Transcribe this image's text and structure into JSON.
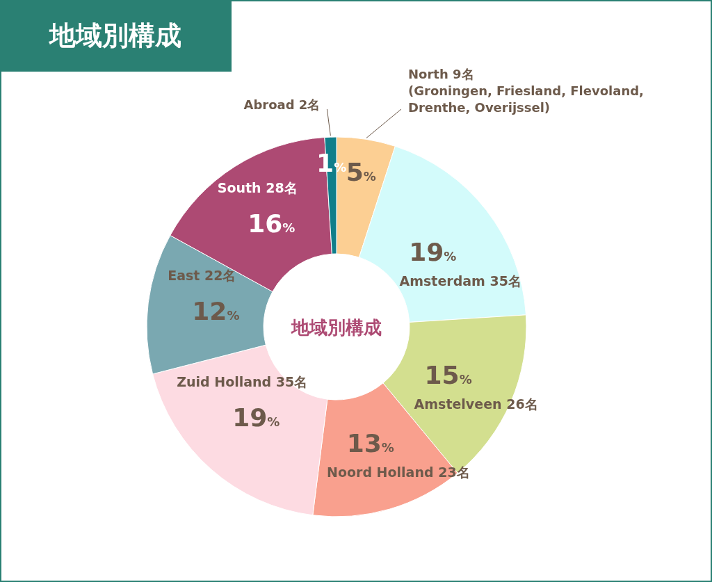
{
  "chart_data": {
    "type": "donut",
    "title": "地域別構成",
    "categories": [
      "North 9名\n(Groningen, Friesland, Flevoland,\nDrenthe, Overijssel)",
      "Amsterdam 35名",
      "Amstelveen 26名",
      "Noord Holland 23名",
      "Zuid Holland 35名",
      "East 22名",
      "South 28名",
      "Abroad 2名"
    ],
    "values": [
      5,
      19,
      15,
      13,
      19,
      12,
      16,
      1
    ],
    "value_labels": [
      "5%",
      "19%",
      "15%",
      "13%",
      "19%",
      "12%",
      "16%",
      "1%"
    ],
    "colors": [
      "#fccf93",
      "#d3fbfb",
      "#d3df8f",
      "#f9a08e",
      "#fddbe2",
      "#7aa8b1",
      "#ad4a73",
      "#107e8a"
    ],
    "annotations": [
      "地域別構成"
    ]
  }
}
